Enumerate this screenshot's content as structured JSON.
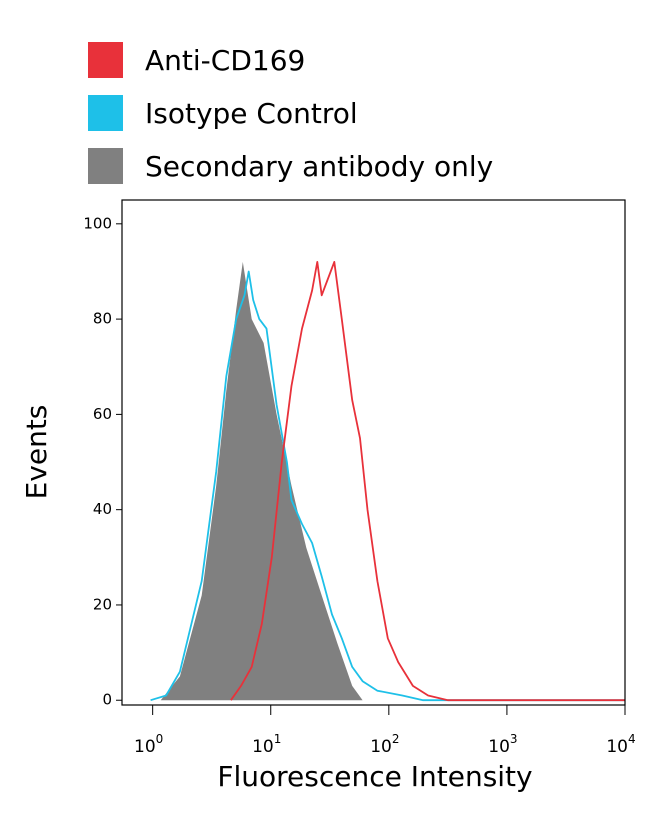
{
  "chart_data": {
    "type": "histogram-overlay",
    "xlabel": "Fluorescence Intensity",
    "ylabel": "Events",
    "xscale": "log",
    "xlim": [
      0.55,
      10000
    ],
    "ylim": [
      -1,
      105
    ],
    "xticks": [
      {
        "value": 1,
        "label": "10",
        "power": "0"
      },
      {
        "value": 10,
        "label": "10",
        "power": "1"
      },
      {
        "value": 100,
        "label": "10",
        "power": "2"
      },
      {
        "value": 1000,
        "label": "10",
        "power": "3"
      },
      {
        "value": 10000,
        "label": "10",
        "power": "4"
      }
    ],
    "yticks": [
      0,
      20,
      40,
      60,
      80,
      100
    ],
    "series": [
      {
        "name": "Anti-CD169",
        "color": "#e8313a",
        "filled": false,
        "x": [
          4.6,
          5.6,
          6.9,
          8.4,
          10.2,
          12.4,
          15,
          18.4,
          22.4,
          24.8,
          27,
          30,
          34.5,
          40,
          49,
          57,
          66,
          80,
          98,
          120,
          160,
          215,
          317,
          10000
        ],
        "values": [
          0,
          3,
          7,
          16,
          30,
          50,
          66,
          78,
          86,
          92,
          85,
          88,
          92,
          80,
          63,
          55,
          40,
          25,
          13,
          8,
          3,
          1,
          0,
          0
        ]
      },
      {
        "name": "Isotype Control",
        "color": "#1ec0e8",
        "filled": false,
        "x": [
          0.96,
          1.3,
          1.7,
          2.6,
          3.45,
          4.2,
          5.1,
          6,
          6.5,
          7.1,
          8,
          9.2,
          11.2,
          13.7,
          15,
          18.4,
          22.4,
          27,
          33,
          40,
          49,
          60,
          80,
          130,
          195,
          10000
        ],
        "values": [
          0,
          1,
          6,
          25,
          48,
          68,
          80,
          85,
          90,
          84,
          80,
          78,
          62,
          50,
          42,
          37,
          33,
          26,
          18,
          13,
          7,
          4,
          2,
          1,
          0,
          0
        ]
      },
      {
        "name": "Secondary antibody only",
        "color": "#808080",
        "filled": true,
        "x": [
          1.17,
          1.7,
          2.6,
          3.45,
          4.2,
          5.1,
          5.8,
          6.9,
          8.7,
          11.2,
          15,
          20,
          27,
          36.6,
          49,
          60
        ],
        "values": [
          0,
          5,
          22,
          45,
          65,
          82,
          92,
          80,
          75,
          60,
          45,
          32,
          22,
          12,
          3,
          0
        ]
      }
    ]
  }
}
